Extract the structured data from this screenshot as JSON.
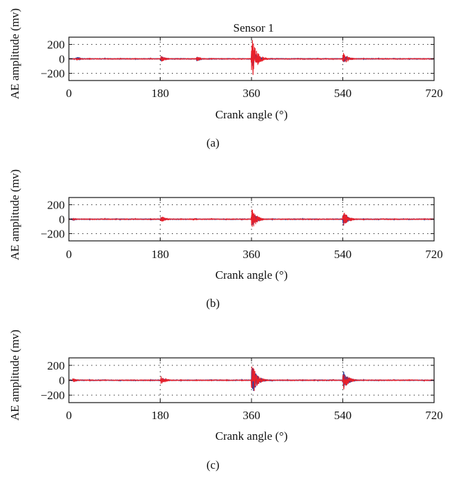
{
  "chart_data": [
    {
      "type": "line",
      "title": "Sensor 1",
      "caption": "(a)",
      "xlabel": "Crank angle (°)",
      "ylabel": "AE amplitude (mv)",
      "xlim": [
        0,
        720
      ],
      "ylim": [
        -300,
        300
      ],
      "xticks": [
        0,
        180,
        360,
        540,
        720
      ],
      "yticks": [
        200,
        0,
        -200
      ],
      "ytick_labels": [
        "200",
        "0",
        "−200"
      ],
      "grid": true,
      "series": [
        {
          "color": "#2b3f9e",
          "bursts": [
            [
              15,
              30
            ],
            [
              182,
              35
            ],
            [
              252,
              30
            ],
            [
              361,
              130
            ],
            [
              541,
              60
            ]
          ]
        },
        {
          "color": "#e8202a",
          "bursts": [
            [
              15,
              20
            ],
            [
              182,
              40
            ],
            [
              252,
              35
            ],
            [
              361,
              300
            ],
            [
              541,
              90
            ]
          ]
        }
      ]
    },
    {
      "type": "line",
      "title": "",
      "caption": "(b)",
      "xlabel": "Crank angle (°)",
      "ylabel": "AE amplitude (mv)",
      "xlim": [
        0,
        720
      ],
      "ylim": [
        -300,
        300
      ],
      "xticks": [
        0,
        180,
        360,
        540,
        720
      ],
      "yticks": [
        200,
        0,
        -200
      ],
      "ytick_labels": [
        "200",
        "0",
        "−200"
      ],
      "grid": true,
      "series": [
        {
          "color": "#2b3f9e",
          "bursts": [
            [
              8,
              15
            ],
            [
              182,
              30
            ],
            [
              361,
              100
            ],
            [
              541,
              90
            ]
          ]
        },
        {
          "color": "#e8202a",
          "bursts": [
            [
              8,
              15
            ],
            [
              182,
              50
            ],
            [
              245,
              15
            ],
            [
              361,
              150
            ],
            [
              541,
              120
            ]
          ]
        }
      ]
    },
    {
      "type": "line",
      "title": "",
      "caption": "(c)",
      "xlabel": "Crank angle (°)",
      "ylabel": "AE amplitude (mv)",
      "xlim": [
        0,
        720
      ],
      "ylim": [
        -300,
        300
      ],
      "xticks": [
        0,
        180,
        360,
        540,
        720
      ],
      "yticks": [
        200,
        0,
        -200
      ],
      "ytick_labels": [
        "200",
        "0",
        "−200"
      ],
      "grid": true,
      "series": [
        {
          "color": "#2b3f9e",
          "bursts": [
            [
              8,
              20
            ],
            [
              182,
              30
            ],
            [
              361,
              200
            ],
            [
              541,
              130
            ]
          ]
        },
        {
          "color": "#e8202a",
          "bursts": [
            [
              8,
              25
            ],
            [
              182,
              60
            ],
            [
              361,
              230
            ],
            [
              541,
              140
            ]
          ]
        }
      ]
    }
  ]
}
